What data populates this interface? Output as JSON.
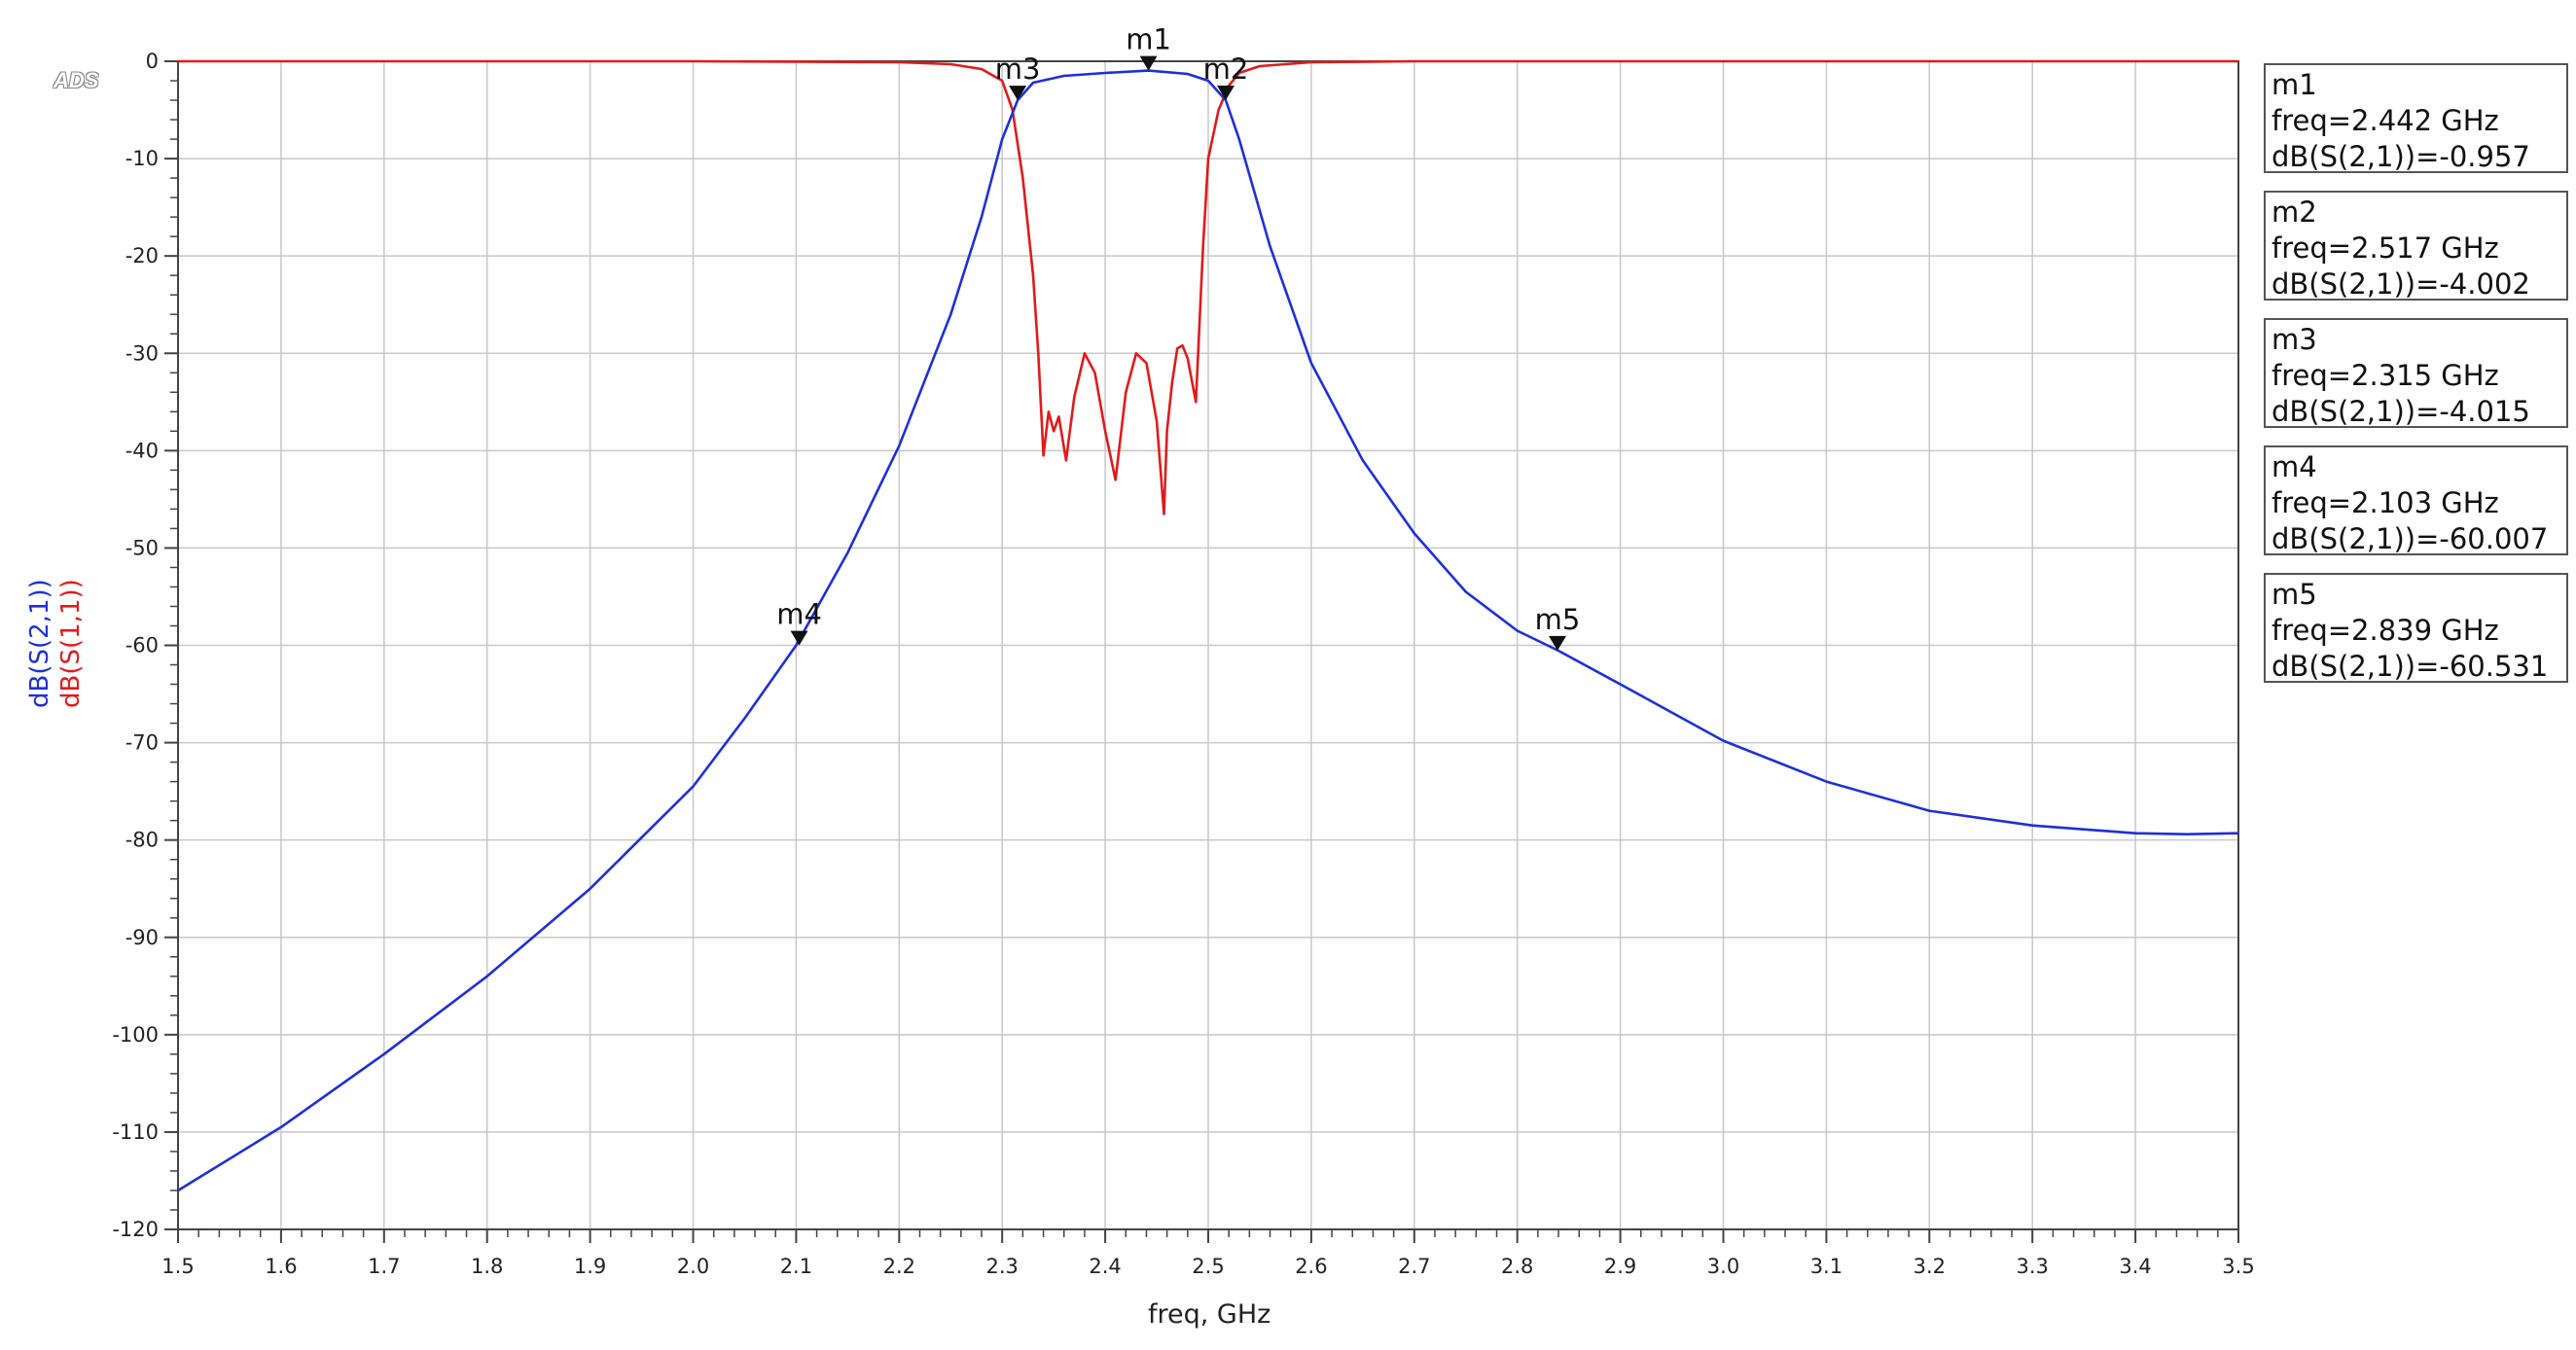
{
  "chart_data": {
    "type": "line",
    "title": "",
    "xlabel": "freq, GHz",
    "ylabel": [
      "dB(S(2,1))",
      "dB(S(1,1))"
    ],
    "xlim": [
      1.5,
      3.5
    ],
    "ylim": [
      -120,
      0
    ],
    "grid": true,
    "xticks": [
      "1.5",
      "1.6",
      "1.7",
      "1.8",
      "1.9",
      "2.0",
      "2.1",
      "2.2",
      "2.3",
      "2.4",
      "2.5",
      "2.6",
      "2.7",
      "2.8",
      "2.9",
      "3.0",
      "3.1",
      "3.2",
      "3.3",
      "3.4",
      "3.5"
    ],
    "yticks": [
      "0",
      "-10",
      "-20",
      "-30",
      "-40",
      "-50",
      "-60",
      "-70",
      "-80",
      "-90",
      "-100",
      "-110",
      "-120"
    ],
    "colors": {
      "s21": "#1f2fd8",
      "s11": "#e01b1b",
      "grid": "#c8c8c8"
    },
    "series": [
      {
        "name": "dB(S(2,1))",
        "x": [
          1.5,
          1.6,
          1.7,
          1.8,
          1.9,
          2.0,
          2.05,
          2.1,
          2.15,
          2.2,
          2.25,
          2.28,
          2.3,
          2.315,
          2.33,
          2.36,
          2.4,
          2.442,
          2.48,
          2.5,
          2.517,
          2.53,
          2.56,
          2.6,
          2.65,
          2.7,
          2.75,
          2.8,
          2.839,
          2.9,
          3.0,
          3.1,
          3.2,
          3.3,
          3.4,
          3.45,
          3.5
        ],
        "y": [
          -116,
          -109.5,
          -102,
          -94,
          -85,
          -74.5,
          -67.5,
          -60,
          -50.5,
          -39.5,
          -26,
          -16,
          -8,
          -4.0,
          -2.2,
          -1.5,
          -1.2,
          -0.957,
          -1.3,
          -2,
          -4.0,
          -8,
          -19,
          -31,
          -41,
          -48.5,
          -54.5,
          -58.5,
          -60.5,
          -64,
          -69.8,
          -74,
          -77,
          -78.5,
          -79.3,
          -79.4,
          -79.3
        ]
      },
      {
        "name": "dB(S(1,1))",
        "x": [
          1.5,
          2.0,
          2.2,
          2.25,
          2.28,
          2.3,
          2.31,
          2.32,
          2.33,
          2.335,
          2.34,
          2.345,
          2.35,
          2.355,
          2.362,
          2.37,
          2.38,
          2.39,
          2.4,
          2.41,
          2.42,
          2.43,
          2.44,
          2.45,
          2.457,
          2.46,
          2.465,
          2.47,
          2.475,
          2.48,
          2.488,
          2.495,
          2.5,
          2.51,
          2.52,
          2.53,
          2.55,
          2.6,
          2.7,
          3.0,
          3.5
        ],
        "y": [
          0,
          0,
          -0.1,
          -0.3,
          -0.8,
          -2,
          -5,
          -12,
          -22,
          -30,
          -40.5,
          -36,
          -38,
          -36.5,
          -41,
          -34.5,
          -30,
          -32,
          -38,
          -43,
          -34,
          -30,
          -31,
          -37,
          -46.5,
          -38,
          -33,
          -29.5,
          -29.2,
          -30.5,
          -35,
          -19,
          -10,
          -5,
          -2.5,
          -1.2,
          -0.5,
          -0.1,
          0,
          0,
          0
        ]
      }
    ],
    "markers": [
      {
        "label": "m1",
        "series": "dB(S(2,1))",
        "freq": 2.442,
        "db": -0.957,
        "lines": [
          "m1",
          "freq=2.442 GHz",
          "dB(S(2,1))=-0.957"
        ]
      },
      {
        "label": "m2",
        "series": "dB(S(2,1))",
        "freq": 2.517,
        "db": -4.002,
        "lines": [
          "m2",
          "freq=2.517 GHz",
          "dB(S(2,1))=-4.002"
        ]
      },
      {
        "label": "m3",
        "series": "dB(S(2,1))",
        "freq": 2.315,
        "db": -4.015,
        "lines": [
          "m3",
          "freq=2.315 GHz",
          "dB(S(2,1))=-4.015"
        ]
      },
      {
        "label": "m4",
        "series": "dB(S(2,1))",
        "freq": 2.103,
        "db": -60.007,
        "lines": [
          "m4",
          "freq=2.103 GHz",
          "dB(S(2,1))=-60.007"
        ]
      },
      {
        "label": "m5",
        "series": "dB(S(2,1))",
        "freq": 2.839,
        "db": -60.531,
        "lines": [
          "m5",
          "freq=2.839 GHz",
          "dB(S(2,1))=-60.531"
        ]
      }
    ]
  },
  "logo": "ADS"
}
